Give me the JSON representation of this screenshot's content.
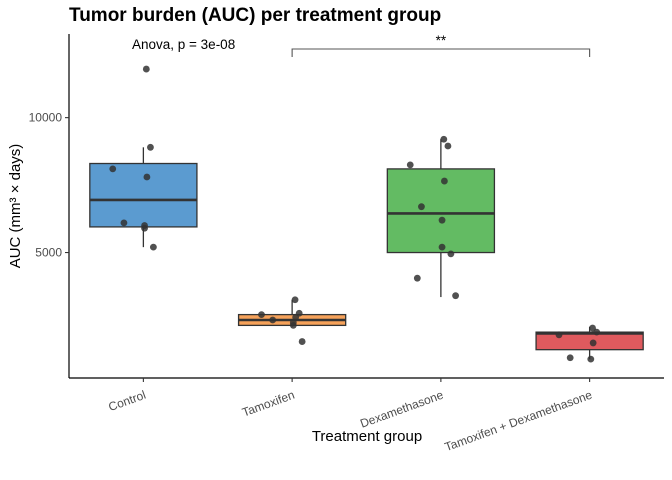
{
  "chart_data": {
    "type": "box",
    "title": "Tumor burden (AUC) per treatment group",
    "xlabel": "Treatment group",
    "ylabel": "AUC (mm³ × days)",
    "ylim": [
      350,
      13100
    ],
    "yticks": [
      5000,
      10000
    ],
    "ytick_labels": [
      "5000",
      "10000"
    ],
    "grid": false,
    "annotation": "Anova, p = 3e-08",
    "comparison": {
      "from": "Tamoxifen",
      "to": "Tamoxifen + Dexamethasone",
      "label": "**"
    },
    "groups": [
      {
        "category": "Control",
        "color": "#5b9bd0",
        "box": {
          "whisker_low": 5200,
          "q1": 5950,
          "median": 6950,
          "q3": 8300,
          "whisker_high": 8900
        },
        "points": [
          11800,
          8900,
          8100,
          7800,
          6100,
          6000,
          5900,
          5200
        ]
      },
      {
        "category": "Tamoxifen",
        "color": "#f6a25a",
        "box": {
          "whisker_low": 2250,
          "q1": 2300,
          "median": 2500,
          "q3": 2700,
          "whisker_high": 3250
        },
        "points": [
          3250,
          2750,
          2700,
          2600,
          2500,
          2400,
          2300,
          1700
        ]
      },
      {
        "category": "Dexamethasone",
        "color": "#63bb63",
        "box": {
          "whisker_low": 3350,
          "q1": 5000,
          "median": 6450,
          "q3": 8100,
          "whisker_high": 9200
        },
        "points": [
          9200,
          8950,
          8250,
          7650,
          6700,
          6200,
          5200,
          4950,
          4050,
          3400
        ]
      },
      {
        "category": "Tamoxifen + Dexamethasone",
        "color": "#df5a5e",
        "box": {
          "whisker_low": 1050,
          "q1": 1400,
          "median": 2000,
          "q3": 2050,
          "whisker_high": 2250
        },
        "points": [
          2200,
          2050,
          1950,
          1650,
          1100,
          1050
        ]
      }
    ]
  }
}
